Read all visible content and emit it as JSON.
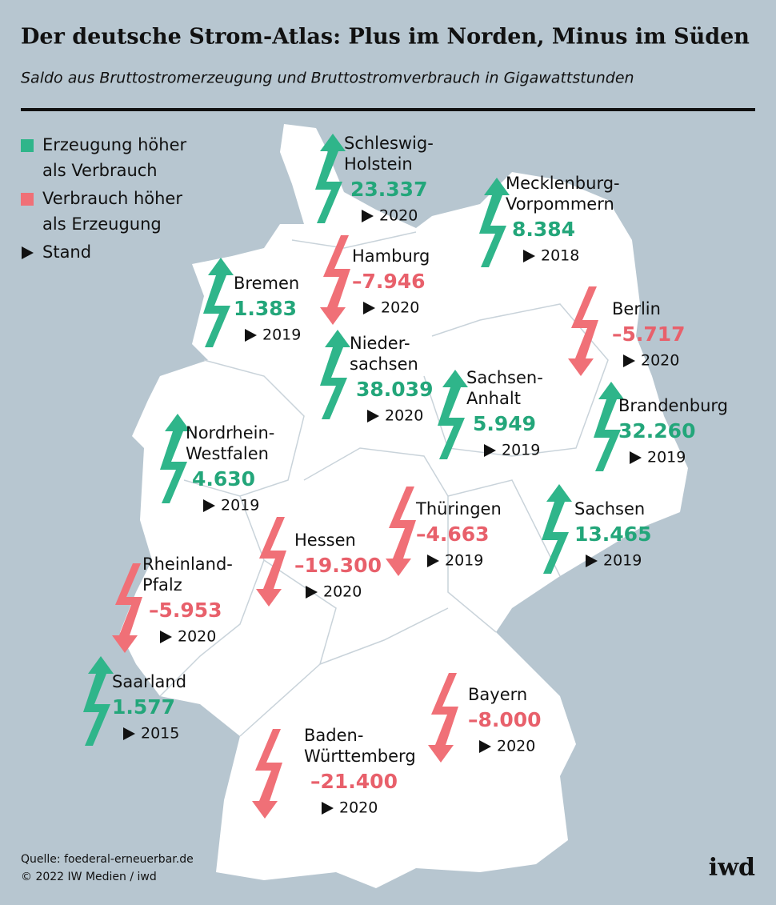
{
  "header": {
    "title": "Der deutsche Strom-Atlas: Plus im Norden, Minus im Süden",
    "subtitle": "Saldo aus Bruttostromerzeugung und Bruttostromverbrauch in Gigawattstunden"
  },
  "legend": [
    {
      "lines": [
        "Erzeugung höher",
        "als Verbrauch"
      ],
      "color": "#2fb58a"
    },
    {
      "lines": [
        "Verbrauch höher",
        "als Erzeugung"
      ],
      "color": "#f07077"
    },
    {
      "lines": [
        "Stand"
      ],
      "color": "#111111"
    }
  ],
  "regions": [
    {
      "name": [
        "Schleswig-",
        "Holstein"
      ],
      "value": "23.337",
      "year": "2020"
    },
    {
      "name": [
        "Mecklenburg-",
        "Vorpommern"
      ],
      "value": "8.384",
      "year": "2018"
    },
    {
      "name": [
        "Hamburg"
      ],
      "value": "–7.946",
      "year": "2020"
    },
    {
      "name": [
        "Bremen"
      ],
      "value": "1.383",
      "year": "2019"
    },
    {
      "name": [
        "Berlin"
      ],
      "value": "–5.717",
      "year": "2020"
    },
    {
      "name": [
        "Nieder-",
        "sachsen"
      ],
      "value": "38.039",
      "year": "2020"
    },
    {
      "name": [
        "Sachsen-",
        "Anhalt"
      ],
      "value": "5.949",
      "year": "2019"
    },
    {
      "name": [
        "Brandenburg"
      ],
      "value": "32.260",
      "year": "2019"
    },
    {
      "name": [
        "Nordrhein-",
        "Westfalen"
      ],
      "value": "4.630",
      "year": "2019"
    },
    {
      "name": [
        "Thüringen"
      ],
      "value": "–4.663",
      "year": "2019"
    },
    {
      "name": [
        "Sachsen"
      ],
      "value": "13.465",
      "year": "2019"
    },
    {
      "name": [
        "Hessen"
      ],
      "value": "–19.300",
      "year": "2020"
    },
    {
      "name": [
        "Rheinland-",
        "Pfalz"
      ],
      "value": "–5.953",
      "year": "2020"
    },
    {
      "name": [
        "Saarland"
      ],
      "value": "1.577",
      "year": "2015"
    },
    {
      "name": [
        "Bayern"
      ],
      "value": "–8.000",
      "year": "2020"
    },
    {
      "name": [
        "Baden-",
        "Württemberg"
      ],
      "value": "–21.400",
      "year": "2020"
    }
  ],
  "footer": {
    "source": "Quelle: foederal-erneuerbar.de",
    "copyright": "© 2022 IW Medien / iwd",
    "logo": "iwd"
  }
}
